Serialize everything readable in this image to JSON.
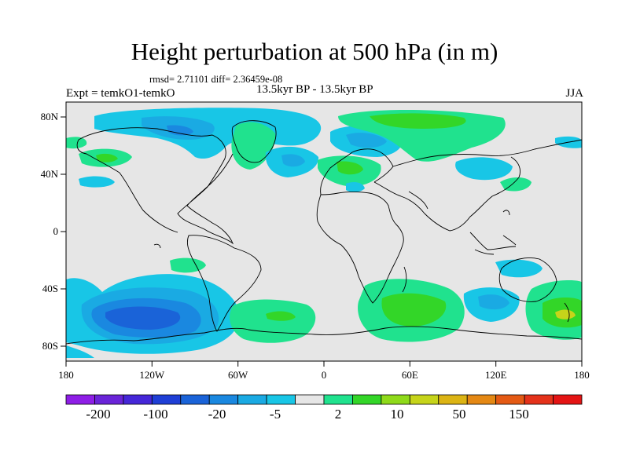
{
  "title": "Height perturbation at 500 hPa (in m)",
  "stats": "rmsd= 2.71101 diff= 2.36459e-08",
  "left_string": "Expt = temkO1-temkO",
  "center_string": "13.5kyr BP - 13.5kyr BP",
  "right_string": "JJA",
  "map": {
    "lon_labels": [
      "180",
      "120W",
      "60W",
      "0",
      "60E",
      "120E",
      "180"
    ],
    "lat_labels": [
      "80N",
      "40N",
      "0",
      "40S",
      "80S"
    ]
  },
  "colorbar": {
    "colors": [
      "#8e1ee6",
      "#6a24d8",
      "#4527d8",
      "#1f3fd6",
      "#1a63d8",
      "#1a88e0",
      "#1aaae3",
      "#18c6e6",
      "#e6e6e6",
      "#20e28e",
      "#33d628",
      "#8fda1a",
      "#c6d41a",
      "#dcb414",
      "#e48814",
      "#e45a14",
      "#e4321a",
      "#e41414"
    ],
    "labels": [
      "-200",
      "-100",
      "-20",
      "-5",
      "2",
      "10",
      "50",
      "150"
    ]
  },
  "palette": {
    "cyan": "#18c6e6",
    "light_blue": "#1aaae3",
    "blue": "#1a88e0",
    "deep_blue": "#1a63d8",
    "green": "#20e28e",
    "bright_green": "#33d628",
    "yellow_green": "#c6d41a",
    "background": "#e6e6e6"
  }
}
